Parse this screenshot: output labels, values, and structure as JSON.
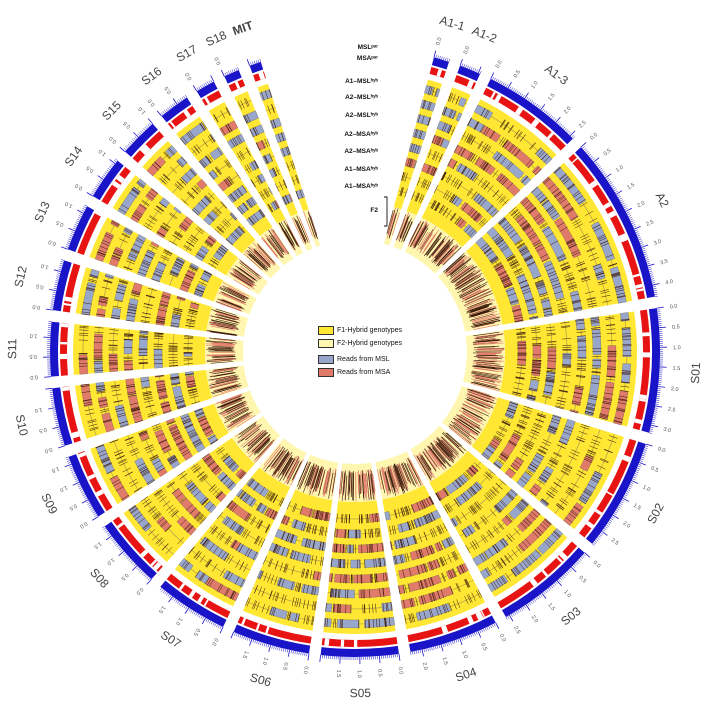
{
  "segments": [
    {
      "id": "A1-1",
      "length": 0.4,
      "ticks": [
        "0.0"
      ]
    },
    {
      "id": "A1-2",
      "length": 0.55,
      "ticks": [
        "0.0"
      ]
    },
    {
      "id": "A1-3",
      "length": 2.6,
      "ticks": [
        "0.0",
        "0.5",
        "1.0",
        "1.5",
        "2.0",
        "2.5"
      ]
    },
    {
      "id": "A2",
      "length": 4.3,
      "ticks": [
        "0.0",
        "0.5",
        "1.0",
        "1.5",
        "2.0",
        "2.5",
        "3.0",
        "3.5",
        "4.0"
      ]
    },
    {
      "id": "S01",
      "length": 3.2,
      "ticks": [
        "0.0",
        "0.5",
        "1.0",
        "1.5",
        "2.0",
        "2.5",
        "3.0"
      ]
    },
    {
      "id": "S02",
      "length": 2.9,
      "ticks": [
        "0.0",
        "0.5",
        "1.0",
        "1.5",
        "2.0",
        "2.5"
      ]
    },
    {
      "id": "S03",
      "length": 2.6,
      "ticks": [
        "0.0",
        "0.5",
        "1.0",
        "1.5",
        "2.0",
        "2.5"
      ]
    },
    {
      "id": "S04",
      "length": 2.3,
      "ticks": [
        "0.0",
        "0.5",
        "1.0",
        "1.5",
        "2.0"
      ]
    },
    {
      "id": "S05",
      "length": 2.0,
      "ticks": [
        "0.0",
        "0.5",
        "1.0",
        "1.5"
      ]
    },
    {
      "id": "S06",
      "length": 2.0,
      "ticks": [
        "0.0",
        "0.5",
        "1.0",
        "1.5"
      ]
    },
    {
      "id": "S07",
      "length": 1.9,
      "ticks": [
        "0.0",
        "0.5",
        "1.0",
        "1.5"
      ]
    },
    {
      "id": "S08",
      "length": 1.8,
      "ticks": [
        "0.0",
        "0.5",
        "1.0",
        "1.5"
      ]
    },
    {
      "id": "S09",
      "length": 1.7,
      "ticks": [
        "0.0",
        "0.5",
        "1.0",
        "1.5"
      ]
    },
    {
      "id": "S10",
      "length": 1.5,
      "ticks": [
        "0.0",
        "0.5",
        "1.0"
      ]
    },
    {
      "id": "S11",
      "length": 1.4,
      "ticks": [
        "0.0",
        "0.5",
        "1.0"
      ]
    },
    {
      "id": "S12",
      "length": 1.3,
      "ticks": [
        "0.0",
        "0.5",
        "1.0"
      ]
    },
    {
      "id": "S13",
      "length": 1.2,
      "ticks": [
        "0.0",
        "0.5",
        "1.0"
      ]
    },
    {
      "id": "S14",
      "length": 1.1,
      "ticks": [
        "0.0",
        "0.5",
        "1.0"
      ]
    },
    {
      "id": "S15",
      "length": 1.0,
      "ticks": [
        "0.0",
        "0.5",
        "1.0"
      ]
    },
    {
      "id": "S16",
      "length": 0.8,
      "ticks": [
        "0.0",
        "0.5"
      ]
    },
    {
      "id": "S17",
      "length": 0.5,
      "ticks": [
        "0.0"
      ]
    },
    {
      "id": "S18",
      "length": 0.4,
      "ticks": [
        "0.0"
      ]
    },
    {
      "id": "MIT",
      "length": 0.3,
      "ticks": [],
      "bold": true
    }
  ],
  "track_labels": [
    "MSLᵖᵃʳ",
    "MSAᵖᵃʳ",
    "A1–MSLʰʸᵇ",
    "A2–MSLʰʸᵇ",
    "A2–MSLʰʸᵇ",
    "A2–MSAʰʸᵇ",
    "A2–MSAʰʸᵇ",
    "A1–MSAʰʸᵇ",
    "A1–MSAʰʸᵇ",
    "F2"
  ],
  "legend": [
    {
      "label": "F1-Hybrid genotypes",
      "color": "#ffe733"
    },
    {
      "label": "F2-Hybrid genotypes",
      "color": "#fff6b0"
    },
    {
      "label": "Reads from MSL",
      "color": "#99a6cc"
    },
    {
      "label": "Reads from MSA",
      "color": "#e07a6a"
    }
  ],
  "colors": {
    "outer_ring": "#1a14c8",
    "msa_ring": "#e81414",
    "f1_band": "#ffe733",
    "f2_band": "#fff6b0",
    "msl_reads": "#99a6cc",
    "msa_reads": "#e07a6a",
    "dark_marks": "#3a1a0a"
  }
}
